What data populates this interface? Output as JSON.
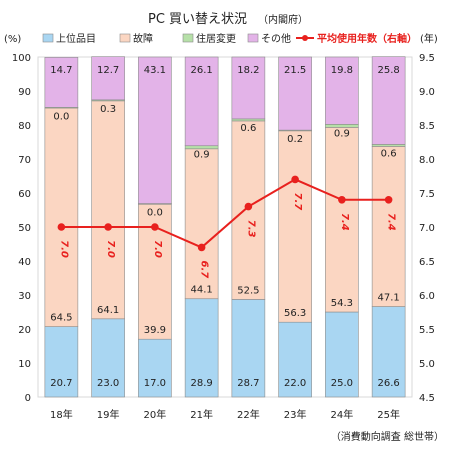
{
  "chart_data": {
    "type": "bar",
    "stacked": true,
    "title": "PC 買い替え状況",
    "subtitle": "（内閣府）",
    "categories": [
      "18年",
      "19年",
      "20年",
      "21年",
      "22年",
      "23年",
      "24年",
      "25年"
    ],
    "left_unit": "(%)",
    "right_unit": "(年)",
    "ylim": [
      0,
      100
    ],
    "y_ticks": [
      "0",
      "10",
      "20",
      "30",
      "40",
      "50",
      "60",
      "70",
      "80",
      "90",
      "100"
    ],
    "y2lim": [
      4.5,
      9.5
    ],
    "y2_ticks": [
      "4.5",
      "5.0",
      "5.5",
      "6.0",
      "6.5",
      "7.0",
      "7.5",
      "8.0",
      "8.5",
      "9.0",
      "9.5"
    ],
    "series": [
      {
        "name": "上位品目",
        "color": "#a9d6f2",
        "values": [
          20.7,
          23.0,
          17.0,
          28.9,
          28.7,
          22.0,
          25.0,
          26.6
        ],
        "labels": [
          "20.7",
          "23.0",
          "17.0",
          "28.9",
          "28.7",
          "22.0",
          "25.0",
          "26.6"
        ]
      },
      {
        "name": "故障",
        "color": "#fbd6c2",
        "values": [
          64.5,
          64.1,
          39.9,
          44.1,
          52.5,
          56.3,
          54.3,
          47.1
        ],
        "labels": [
          "64.5",
          "64.1",
          "39.9",
          "44.1",
          "52.5",
          "56.3",
          "54.3",
          "47.1"
        ]
      },
      {
        "name": "住居変更",
        "color": "#b6e0a8",
        "values": [
          0.0,
          0.3,
          0.0,
          0.9,
          0.6,
          0.2,
          0.9,
          0.6
        ],
        "labels": [
          "0.0",
          "0.3",
          "0.0",
          "0.9",
          "0.6",
          "0.2",
          "0.9",
          "0.6"
        ]
      },
      {
        "name": "その他",
        "color": "#e3b3e8",
        "values": [
          14.7,
          12.7,
          43.1,
          26.1,
          18.2,
          21.5,
          19.8,
          25.8
        ],
        "labels": [
          "14.7",
          "12.7",
          "43.1",
          "26.1",
          "18.2",
          "21.5",
          "19.8",
          "25.8"
        ]
      }
    ],
    "line_series": {
      "name": "平均使用年数（右軸）",
      "color": "#e8211e",
      "values": [
        7.0,
        7.0,
        7.0,
        6.7,
        7.3,
        7.7,
        7.4,
        7.4
      ],
      "labels": [
        "7.0",
        "7.0",
        "7.0",
        "6.7",
        "7.3",
        "7.7",
        "7.4",
        "7.4"
      ]
    },
    "source": "（消費動向調査 総世帯）",
    "grid": false,
    "legend_position": "top"
  }
}
